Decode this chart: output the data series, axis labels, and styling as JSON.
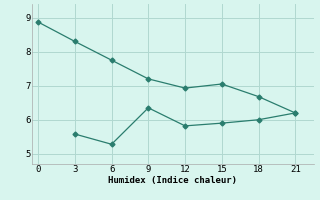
{
  "line1_x": [
    0,
    3,
    6,
    9,
    12,
    15,
    18,
    21
  ],
  "line1_y": [
    8.87,
    8.3,
    7.75,
    7.2,
    6.93,
    7.05,
    6.68,
    6.2
  ],
  "line2_x": [
    3,
    6,
    9,
    12,
    15,
    18,
    21
  ],
  "line2_y": [
    5.58,
    5.28,
    6.35,
    5.82,
    5.9,
    6.0,
    6.2
  ],
  "line_color": "#2a7d6e",
  "marker": "D",
  "markersize": 2.5,
  "xlabel": "Humidex (Indice chaleur)",
  "xlim": [
    -0.5,
    22.5
  ],
  "ylim": [
    4.7,
    9.4
  ],
  "xticks": [
    0,
    3,
    6,
    9,
    12,
    15,
    18,
    21
  ],
  "yticks": [
    5,
    6,
    7,
    8,
    9
  ],
  "bg_color": "#d8f5ee",
  "grid_color": "#b0d8d0"
}
